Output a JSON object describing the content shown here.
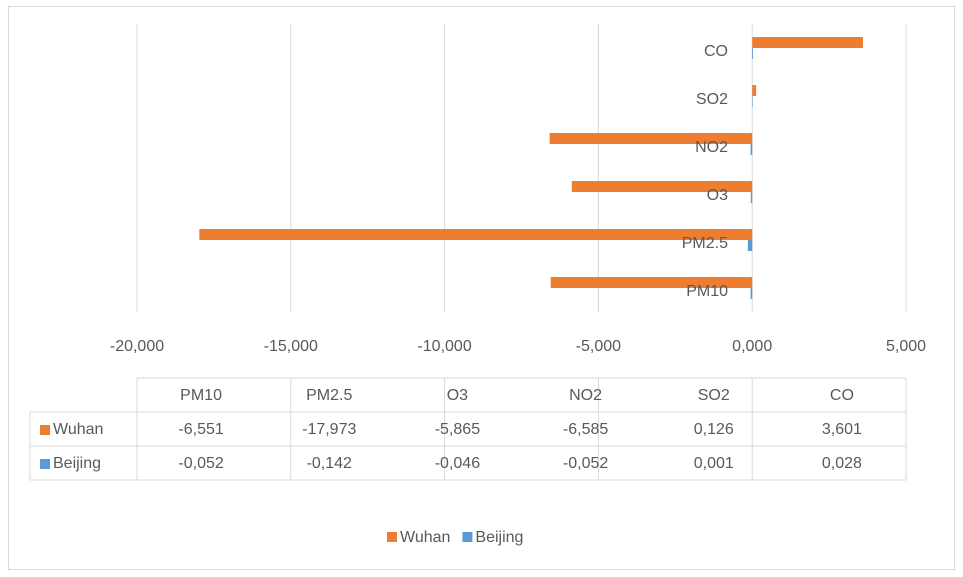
{
  "chart_data": {
    "type": "bar",
    "orientation": "horizontal",
    "categories": [
      "PM10",
      "PM2.5",
      "O3",
      "NO2",
      "SO2",
      "CO"
    ],
    "series": [
      {
        "name": "Wuhan",
        "color": "#ed7d31",
        "values": [
          -6.551,
          -17.973,
          -5.865,
          -6.585,
          0.126,
          3.601
        ],
        "value_labels": [
          "-6,551",
          "-17,973",
          "-5,865",
          "-6,585",
          "0,126",
          "3,601"
        ]
      },
      {
        "name": "Beijing",
        "color": "#5b9bd5",
        "values": [
          -0.052,
          -0.142,
          -0.046,
          -0.052,
          0.001,
          0.028
        ],
        "value_labels": [
          "-0,052",
          "-0,142",
          "-0,046",
          "-0,052",
          "0,001",
          "0,028"
        ]
      }
    ],
    "xlim": [
      -20,
      5
    ],
    "xticks": [
      {
        "value": -20,
        "label": "-20,000"
      },
      {
        "value": -15,
        "label": "-15,000"
      },
      {
        "value": -10,
        "label": "-10,000"
      },
      {
        "value": -5,
        "label": "-5,000"
      },
      {
        "value": 0,
        "label": "0,000"
      },
      {
        "value": 5,
        "label": "5,000"
      }
    ],
    "grid": true,
    "data_table": true,
    "legend": "bottom"
  }
}
